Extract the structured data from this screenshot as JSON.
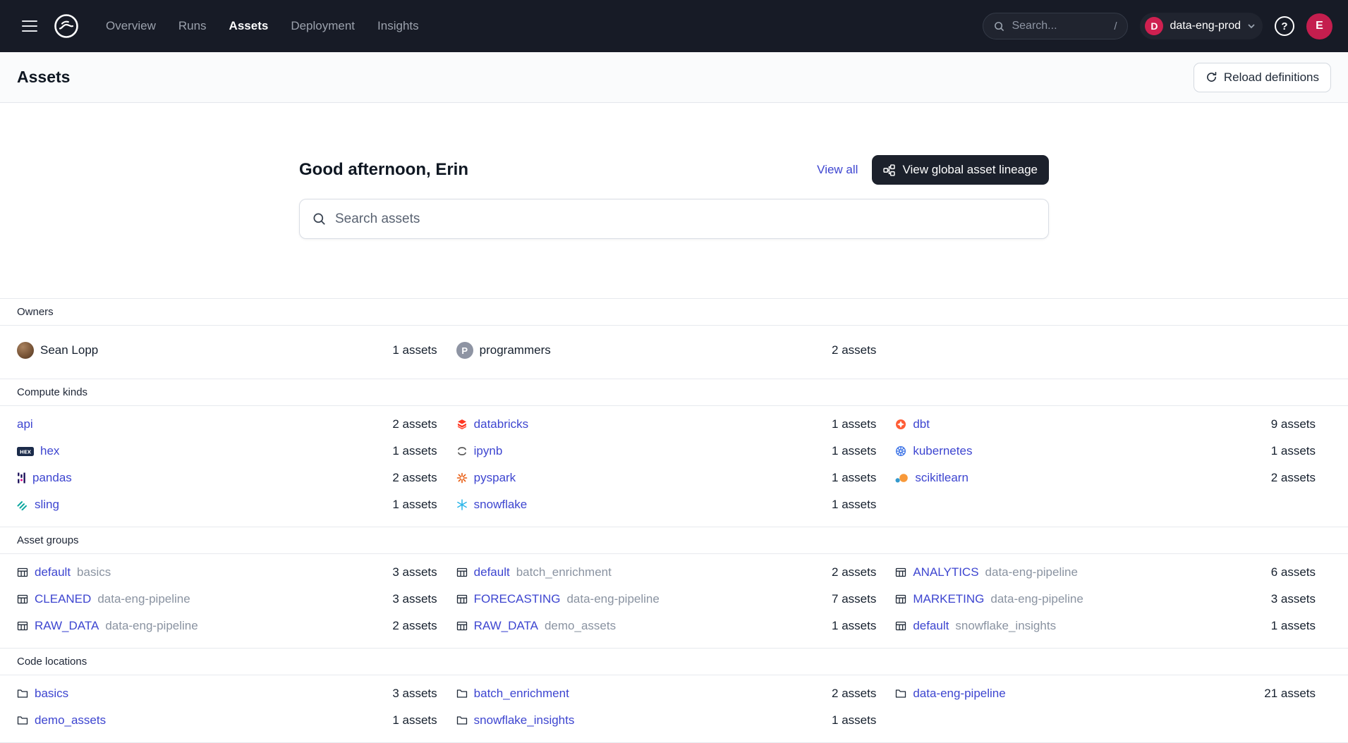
{
  "nav": {
    "items": [
      {
        "label": "Overview",
        "active": false
      },
      {
        "label": "Runs",
        "active": false
      },
      {
        "label": "Assets",
        "active": true
      },
      {
        "label": "Deployment",
        "active": false
      },
      {
        "label": "Insights",
        "active": false
      }
    ],
    "search_placeholder": "Search...",
    "search_shortcut": "/",
    "deployment": "data-eng-prod",
    "deployment_initial": "D",
    "avatar_initial": "E"
  },
  "header": {
    "title": "Assets",
    "reload_button": "Reload definitions"
  },
  "hero": {
    "greeting": "Good afternoon, Erin",
    "view_all": "View all",
    "lineage_button": "View global asset lineage",
    "search_placeholder": "Search assets"
  },
  "sections": [
    {
      "title": "Owners",
      "kind": "owner",
      "rows": [
        [
          {
            "icon": "avatar",
            "label": "Sean Lopp",
            "plain": true,
            "count": "1 assets"
          },
          {
            "icon": "badge-p",
            "label": "programmers",
            "plain": true,
            "count": "2 assets"
          },
          null
        ]
      ]
    },
    {
      "title": "Compute kinds",
      "kind": "compute-kind",
      "rows": [
        [
          {
            "label": "api",
            "count": "2 assets"
          },
          {
            "icon": "databricks",
            "label": "databricks",
            "count": "1 assets"
          },
          {
            "icon": "dbt",
            "label": "dbt",
            "count": "9 assets"
          }
        ],
        [
          {
            "icon": "hex",
            "label": "hex",
            "count": "1 assets"
          },
          {
            "icon": "jupyter",
            "label": "ipynb",
            "count": "1 assets"
          },
          {
            "icon": "kubernetes",
            "label": "kubernetes",
            "count": "1 assets"
          }
        ],
        [
          {
            "icon": "pandas",
            "label": "pandas",
            "count": "2 assets"
          },
          {
            "icon": "pyspark",
            "label": "pyspark",
            "count": "1 assets"
          },
          {
            "icon": "scikitlearn",
            "label": "scikitlearn",
            "count": "2 assets"
          }
        ],
        [
          {
            "icon": "sling",
            "label": "sling",
            "count": "1 assets"
          },
          {
            "icon": "snowflake",
            "label": "snowflake",
            "count": "1 assets"
          },
          null
        ]
      ]
    },
    {
      "title": "Asset groups",
      "kind": "asset-group",
      "rows": [
        [
          {
            "icon": "grid",
            "label": "default",
            "secondary": "basics",
            "count": "3 assets"
          },
          {
            "icon": "grid",
            "label": "default",
            "secondary": "batch_enrichment",
            "count": "2 assets"
          },
          {
            "icon": "grid",
            "label": "ANALYTICS",
            "secondary": "data-eng-pipeline",
            "count": "6 assets"
          }
        ],
        [
          {
            "icon": "grid",
            "label": "CLEANED",
            "secondary": "data-eng-pipeline",
            "count": "3 assets"
          },
          {
            "icon": "grid",
            "label": "FORECASTING",
            "secondary": "data-eng-pipeline",
            "count": "7 assets"
          },
          {
            "icon": "grid",
            "label": "MARKETING",
            "secondary": "data-eng-pipeline",
            "count": "3 assets"
          }
        ],
        [
          {
            "icon": "grid",
            "label": "RAW_DATA",
            "secondary": "data-eng-pipeline",
            "count": "2 assets"
          },
          {
            "icon": "grid",
            "label": "RAW_DATA",
            "secondary": "demo_assets",
            "count": "1 assets"
          },
          {
            "icon": "grid",
            "label": "default",
            "secondary": "snowflake_insights",
            "count": "1 assets"
          }
        ]
      ]
    },
    {
      "title": "Code locations",
      "kind": "code-location",
      "rows": [
        [
          {
            "icon": "folder",
            "label": "basics",
            "count": "3 assets"
          },
          {
            "icon": "folder",
            "label": "batch_enrichment",
            "count": "2 assets"
          },
          {
            "icon": "folder",
            "label": "data-eng-pipeline",
            "count": "21 assets"
          }
        ],
        [
          {
            "icon": "folder",
            "label": "demo_assets",
            "count": "1 assets"
          },
          {
            "icon": "folder",
            "label": "snowflake_insights",
            "count": "1 assets"
          },
          null
        ]
      ]
    }
  ]
}
